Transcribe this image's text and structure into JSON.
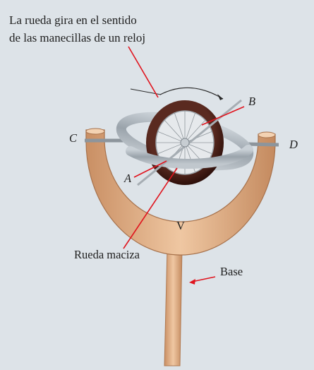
{
  "caption": {
    "line1": "La rueda gira en el sentido",
    "line2": "de las manecillas de un reloj"
  },
  "labels": {
    "A": "A",
    "B": "B",
    "C": "C",
    "D": "D",
    "V": "V",
    "solid_wheel": "Rueda maciza",
    "base": "Base"
  },
  "colors": {
    "background": "#dde3e8",
    "tire": "#4a1d16",
    "frame": "#e4b890",
    "ring": "#aab2ba",
    "pointer": "#e0141e"
  }
}
